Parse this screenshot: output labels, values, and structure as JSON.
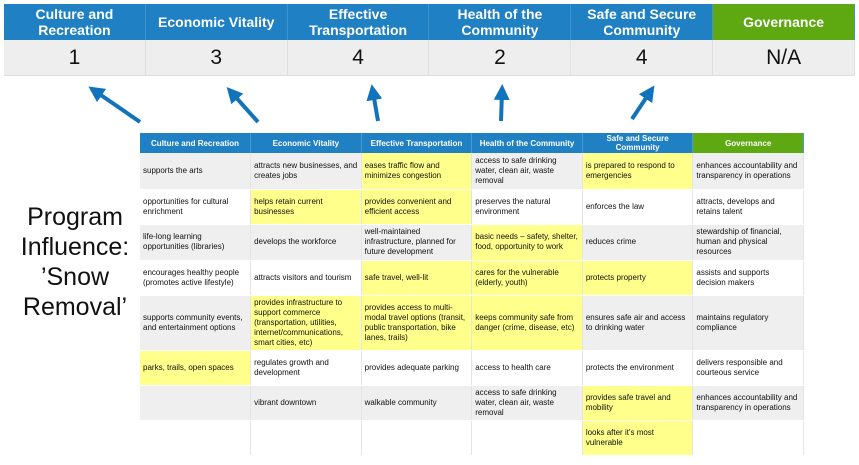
{
  "summary": {
    "columns": [
      {
        "label": "Culture and Recreation",
        "score": "1"
      },
      {
        "label": "Economic Vitality",
        "score": "3"
      },
      {
        "label": "Effective Transportation",
        "score": "4"
      },
      {
        "label": "Health of the Community",
        "score": "2"
      },
      {
        "label": "Safe and Secure Community",
        "score": "4"
      },
      {
        "label": "Governance",
        "score": "N/A"
      }
    ]
  },
  "program_label": "Program Influence: ’Snow Removal’",
  "colors": {
    "header_blue": "#1f80c3",
    "governance_green": "#5ea912",
    "highlight": "#ffff8c",
    "row_gray": "#efefef"
  },
  "icons": [
    "arrow-up-icon"
  ],
  "matrix": {
    "headers": [
      "Culture and Recreation",
      "Economic Vitality",
      "Effective Transportation",
      "Health of the Community",
      "Safe and Secure Community",
      "Governance"
    ],
    "rows": [
      [
        {
          "text": "supports the arts",
          "hl": false
        },
        {
          "text": "attracts new businesses, and creates jobs",
          "hl": false
        },
        {
          "text": "eases traffic flow and minimizes congestion",
          "hl": true
        },
        {
          "text": "access to safe drinking water, clean air, waste removal",
          "hl": false
        },
        {
          "text": "is prepared to respond to emergencies",
          "hl": true
        },
        {
          "text": "enhances accountability and transparency in operations",
          "hl": false
        }
      ],
      [
        {
          "text": "opportunities for cultural enrichment",
          "hl": false
        },
        {
          "text": "helps retain current businesses",
          "hl": true
        },
        {
          "text": "provides convenient and efficient access",
          "hl": true
        },
        {
          "text": "preserves the natural environment",
          "hl": false
        },
        {
          "text": "enforces the law",
          "hl": false
        },
        {
          "text": "attracts, develops and retains talent",
          "hl": false
        }
      ],
      [
        {
          "text": "life-long learning opportunities (libraries)",
          "hl": false
        },
        {
          "text": "develops the workforce",
          "hl": false
        },
        {
          "text": "well-maintained infrastructure, planned for future development",
          "hl": false
        },
        {
          "text": "basic needs – safety, shelter, food, opportunity to work",
          "hl": true
        },
        {
          "text": "reduces crime",
          "hl": false
        },
        {
          "text": "stewardship of financial, human and physical resources",
          "hl": false
        }
      ],
      [
        {
          "text": "encourages healthy people (promotes active lifestyle)",
          "hl": false
        },
        {
          "text": "attracts visitors and tourism",
          "hl": false
        },
        {
          "text": "safe travel, well-lit",
          "hl": true
        },
        {
          "text": "cares for the vulnerable (elderly, youth)",
          "hl": true
        },
        {
          "text": "protects property",
          "hl": true
        },
        {
          "text": "assists and supports decision makers",
          "hl": false
        }
      ],
      [
        {
          "text": "supports community events, and entertainment options",
          "hl": false
        },
        {
          "text": "provides infrastructure to support commerce (transportation, utilities, internet/communications, smart cities, etc)",
          "hl": true
        },
        {
          "text": "provides access to multi-modal travel options (transit, public transportation, bike lanes, trails)",
          "hl": true
        },
        {
          "text": "keeps community safe from danger (crime, disease, etc)",
          "hl": true
        },
        {
          "text": "ensures safe air and access to drinking water",
          "hl": false
        },
        {
          "text": "maintains regulatory compliance",
          "hl": false
        }
      ],
      [
        {
          "text": "parks, trails, open spaces",
          "hl": true
        },
        {
          "text": "regulates growth and development",
          "hl": false
        },
        {
          "text": "provides adequate parking",
          "hl": false
        },
        {
          "text": "access to health care",
          "hl": false
        },
        {
          "text": "protects the environment",
          "hl": false
        },
        {
          "text": "delivers responsible and courteous service",
          "hl": false
        }
      ],
      [
        {
          "text": "",
          "hl": false
        },
        {
          "text": "vibrant downtown",
          "hl": false
        },
        {
          "text": "walkable community",
          "hl": false
        },
        {
          "text": "access to safe drinking water, clean air, waste removal",
          "hl": false
        },
        {
          "text": "provides safe travel and mobility",
          "hl": true
        },
        {
          "text": "enhances accountability and transparency in operations",
          "hl": false
        }
      ],
      [
        {
          "text": "",
          "hl": false
        },
        {
          "text": "",
          "hl": false
        },
        {
          "text": "",
          "hl": false
        },
        {
          "text": "",
          "hl": false
        },
        {
          "text": "looks after it's most vulnerable",
          "hl": true
        },
        {
          "text": "",
          "hl": false
        }
      ]
    ]
  }
}
